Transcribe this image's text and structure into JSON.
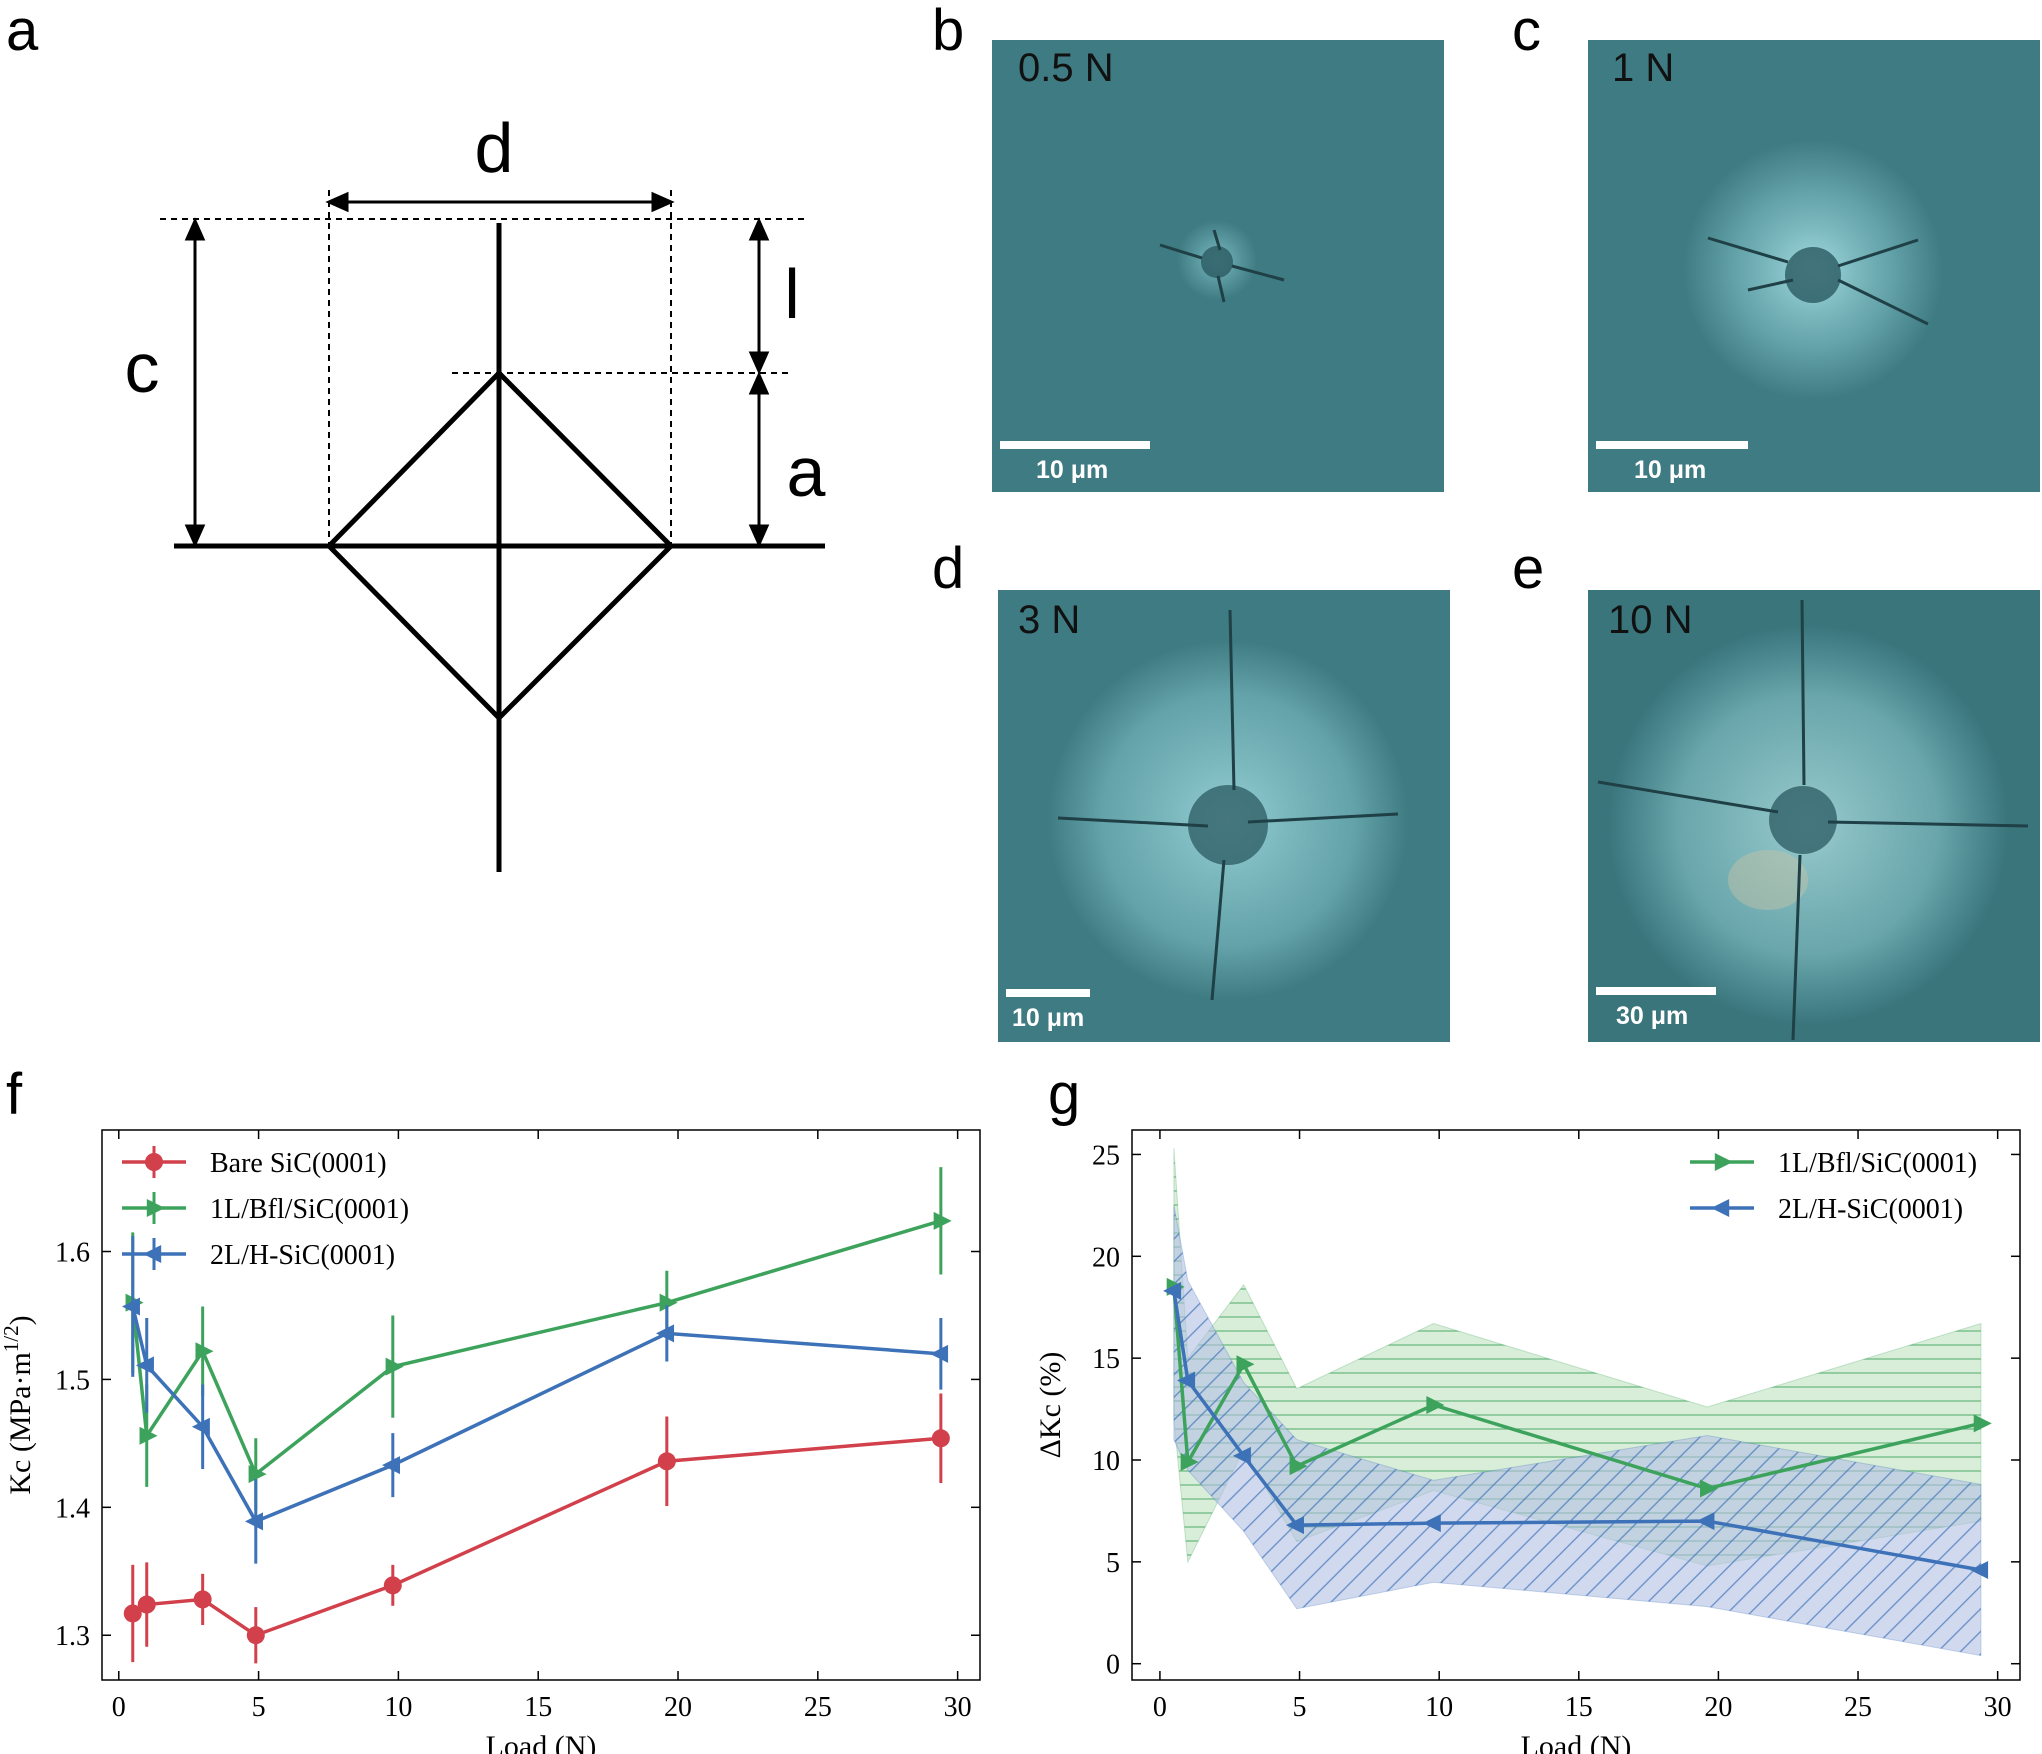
{
  "panels": {
    "a": "a",
    "b": "b",
    "c": "c",
    "d": "d",
    "e": "e",
    "f": "f",
    "g": "g"
  },
  "schematic": {
    "labels": {
      "d": "d",
      "c": "c",
      "l": "l",
      "a": "a"
    }
  },
  "micrographs": [
    {
      "load": "0.5 N",
      "scale": "10 μm"
    },
    {
      "load": "1 N",
      "scale": "10 μm"
    },
    {
      "load": "3 N",
      "scale": "10 μm"
    },
    {
      "load": "10 N",
      "scale": "30 μm"
    }
  ],
  "colors": {
    "micro_bg": "#3f7b82",
    "red": "#d1404b",
    "green": "#3da35c",
    "blue": "#3d72b8",
    "green_fill": "#bfe4bf",
    "blue_fill": "#b4c0e6"
  },
  "chart_data": [
    {
      "type": "line",
      "xlabel": "Load (N)",
      "ylabel": "Kc (MPa·m",
      "ylabel_sup": "1/2",
      "ylabel_close": ")",
      "xlim": [
        -0.6,
        30.8
      ],
      "ylim": [
        1.265,
        1.695
      ],
      "xticks": [
        0,
        5,
        10,
        15,
        20,
        25,
        30
      ],
      "yticks": [
        1.3,
        1.4,
        1.5,
        1.6
      ],
      "ytick_labels": [
        "1.3",
        "1.4",
        "1.5",
        "1.6"
      ],
      "legend": "top-left",
      "series": [
        {
          "name": "Bare SiC(0001)",
          "color": "#d1404b",
          "marker": "circle",
          "x": [
            0.5,
            1,
            3,
            4.9,
            9.8,
            19.6,
            29.4
          ],
          "y": [
            1.317,
            1.324,
            1.328,
            1.3,
            1.339,
            1.436,
            1.454
          ],
          "err": [
            0.038,
            0.033,
            0.02,
            0.022,
            0.016,
            0.035,
            0.035
          ]
        },
        {
          "name": "1L/Bfl/SiC(0001)",
          "color": "#3da35c",
          "marker": "triangle-right",
          "x": [
            0.5,
            1,
            3,
            4.9,
            9.8,
            19.6,
            29.4
          ],
          "y": [
            1.56,
            1.456,
            1.522,
            1.426,
            1.51,
            1.56,
            1.624
          ],
          "err": [
            0.055,
            0.04,
            0.035,
            0.028,
            0.04,
            0.025,
            0.042
          ]
        },
        {
          "name": "2L/H-SiC(0001)",
          "color": "#3d72b8",
          "marker": "triangle-left",
          "x": [
            0.5,
            1,
            3,
            4.9,
            9.8,
            19.6,
            29.4
          ],
          "y": [
            1.557,
            1.511,
            1.463,
            1.389,
            1.433,
            1.536,
            1.52
          ],
          "err": [
            0.055,
            0.037,
            0.033,
            0.033,
            0.025,
            0.022,
            0.028
          ]
        }
      ]
    },
    {
      "type": "line",
      "xlabel": "Load (N)",
      "ylabel": "ΔKc (%)",
      "xlim": [
        -1.0,
        30.8
      ],
      "ylim": [
        -0.8,
        26.2
      ],
      "xticks": [
        0,
        5,
        10,
        15,
        20,
        25,
        30
      ],
      "yticks": [
        0,
        5,
        10,
        15,
        20,
        25
      ],
      "legend": "top-right",
      "series": [
        {
          "name": "1L/Bfl/SiC(0001)",
          "color": "#3da35c",
          "marker": "triangle-right",
          "x": [
            0.5,
            1,
            3,
            4.9,
            9.8,
            19.6,
            29.4
          ],
          "y": [
            18.5,
            9.9,
            14.7,
            9.7,
            12.7,
            8.6,
            11.8
          ],
          "band_low": [
            12.0,
            5.0,
            10.5,
            6.0,
            8.5,
            4.8,
            7.0
          ],
          "band_high": [
            25.3,
            15.0,
            18.6,
            13.5,
            16.7,
            12.6,
            16.7
          ]
        },
        {
          "name": "2L/H-SiC(0001)",
          "color": "#3d72b8",
          "marker": "triangle-left",
          "x": [
            0.5,
            1,
            3,
            4.9,
            9.8,
            19.6,
            29.4
          ],
          "y": [
            18.3,
            13.9,
            10.2,
            6.8,
            6.9,
            7.0,
            4.6
          ],
          "band_low": [
            11.0,
            9.5,
            6.5,
            2.7,
            4.0,
            2.8,
            0.4
          ],
          "band_high": [
            22.5,
            18.8,
            13.8,
            11.0,
            9.0,
            11.2,
            8.8
          ]
        }
      ]
    }
  ]
}
